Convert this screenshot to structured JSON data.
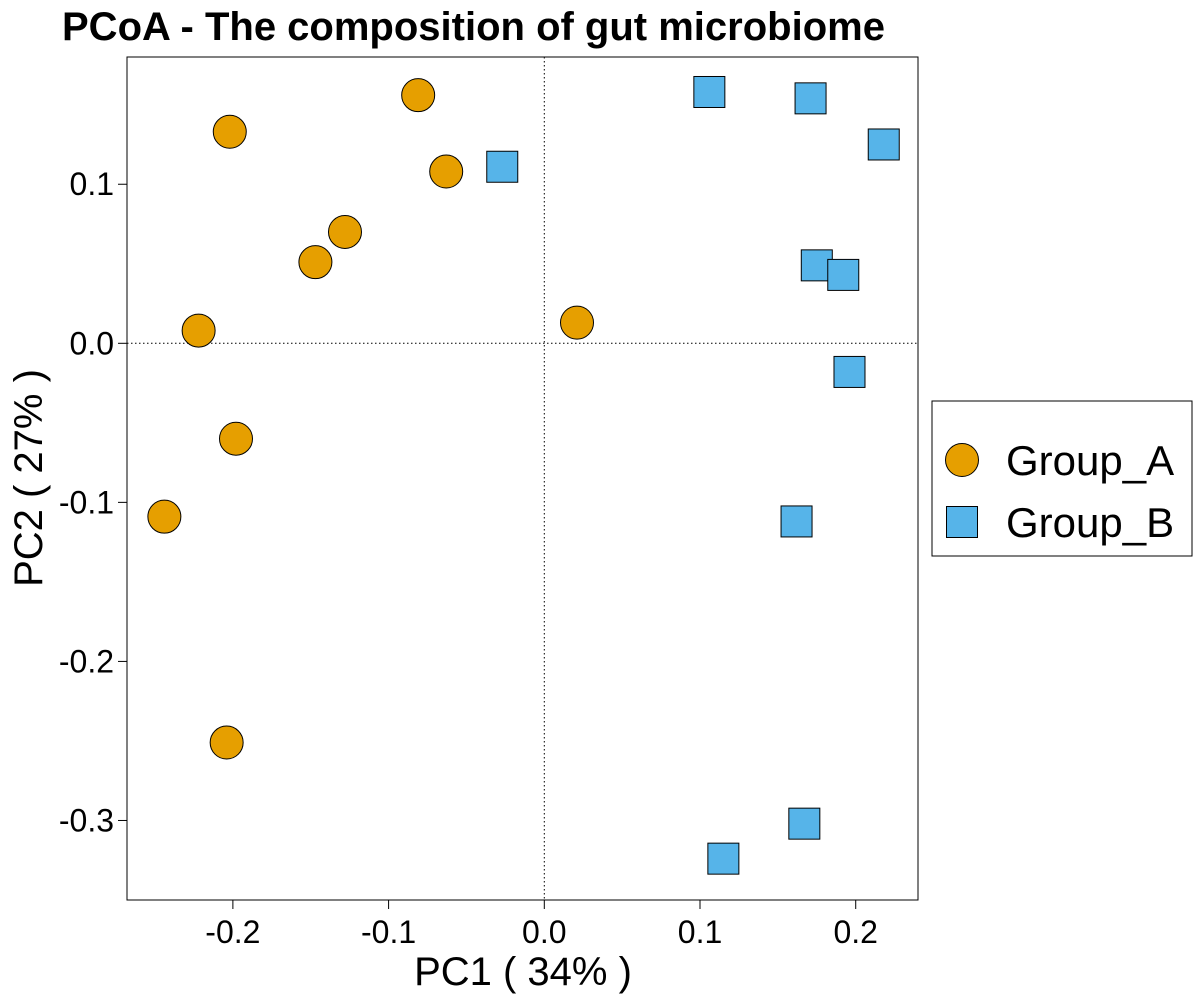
{
  "chart_data": {
    "type": "scatter",
    "title": "PCoA - The composition of gut microbiome",
    "xlabel": "PC1 ( 34% )",
    "ylabel": "PC2 ( 27% )",
    "xlim": [
      -0.268,
      0.24
    ],
    "ylim": [
      -0.35,
      0.18
    ],
    "xticks": [
      -0.2,
      -0.1,
      0.0,
      0.1,
      0.2
    ],
    "xtick_labels": [
      "-0.2",
      "-0.1",
      "0.0",
      "0.1",
      "0.2"
    ],
    "yticks": [
      -0.3,
      -0.2,
      -0.1,
      0.0,
      0.1
    ],
    "ytick_labels": [
      "-0.3",
      "-0.2",
      "-0.1",
      "0.0",
      "0.1"
    ],
    "reference_lines": {
      "x": 0,
      "y": 0,
      "style": "dotted"
    },
    "grid": false,
    "legend": {
      "placement": "right"
    },
    "series": [
      {
        "name": "Group_A",
        "marker": "circle",
        "color": "#E69F00",
        "points": [
          [
            -0.081,
            0.156
          ],
          [
            -0.202,
            0.133
          ],
          [
            -0.063,
            0.108
          ],
          [
            -0.128,
            0.07
          ],
          [
            -0.147,
            0.051
          ],
          [
            -0.222,
            0.008
          ],
          [
            0.021,
            0.013
          ],
          [
            -0.198,
            -0.06
          ],
          [
            -0.244,
            -0.109
          ],
          [
            -0.204,
            -0.251
          ]
        ]
      },
      {
        "name": "Group_B",
        "marker": "square",
        "color": "#56B4E9",
        "points": [
          [
            0.106,
            0.158
          ],
          [
            0.171,
            0.154
          ],
          [
            0.218,
            0.125
          ],
          [
            -0.027,
            0.111
          ],
          [
            0.175,
            0.049
          ],
          [
            0.192,
            0.043
          ],
          [
            0.196,
            -0.018
          ],
          [
            0.162,
            -0.112
          ],
          [
            0.167,
            -0.302
          ],
          [
            0.115,
            -0.324
          ]
        ]
      }
    ]
  }
}
